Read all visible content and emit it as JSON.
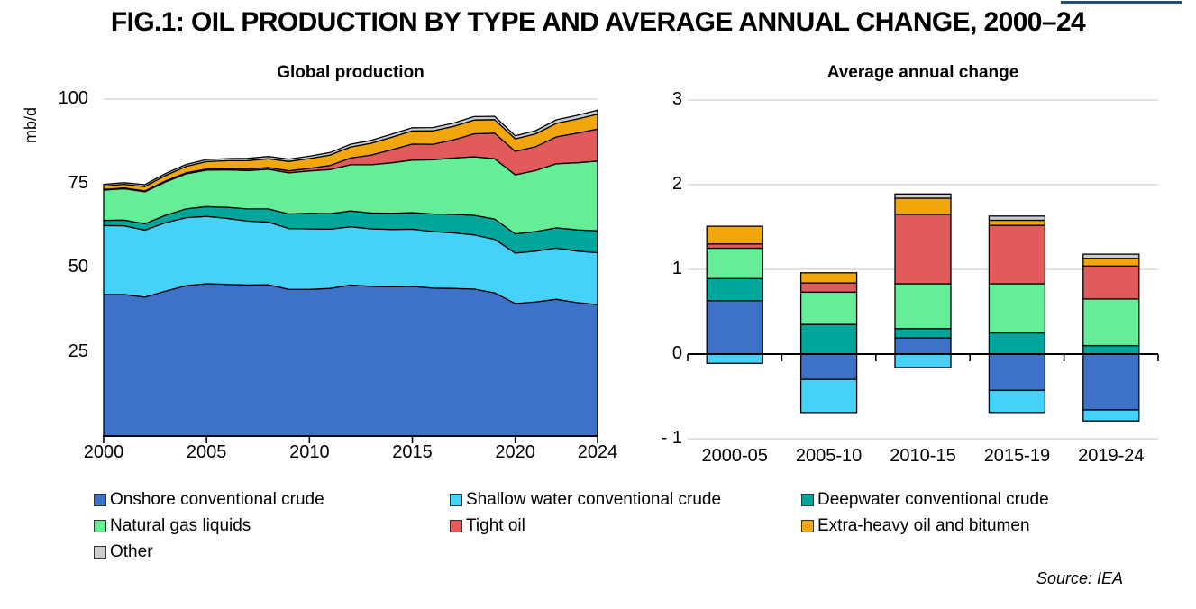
{
  "figure": {
    "title": "FIG.1: OIL PRODUCTION BY TYPE AND AVERAGE ANNUAL CHANGE, 2000–24",
    "source": "Source: IEA",
    "accent_color": "#1F4E79"
  },
  "palette": {
    "grid": "#D9D9D9",
    "axis": "#000000",
    "series_border": "#000000"
  },
  "chart_data": [
    {
      "type": "area",
      "stacked": true,
      "title": "Global production",
      "ylabel": "mb/d",
      "ylim": [
        0,
        100
      ],
      "grid": "single line at 100",
      "gridlines": [
        100
      ],
      "yticks": [
        {
          "v": 100,
          "label": "100"
        },
        {
          "v": 75,
          "label": "75"
        },
        {
          "v": 50,
          "label": "50"
        },
        {
          "v": 25,
          "label": "25"
        }
      ],
      "xticks": [
        {
          "v": 2000,
          "label": "2000"
        },
        {
          "v": 2005,
          "label": "2005"
        },
        {
          "v": 2010,
          "label": "2010"
        },
        {
          "v": 2015,
          "label": "2015"
        },
        {
          "v": 2020,
          "label": "2020"
        },
        {
          "v": 2024,
          "label": "2024"
        }
      ],
      "x": [
        2000,
        2001,
        2002,
        2003,
        2004,
        2005,
        2006,
        2007,
        2008,
        2009,
        2010,
        2011,
        2012,
        2013,
        2014,
        2015,
        2016,
        2017,
        2018,
        2019,
        2020,
        2021,
        2022,
        2023,
        2024
      ],
      "series": [
        {
          "name": "Onshore conventional crude",
          "color": "#3D72C8",
          "values": [
            42.0,
            42.0,
            41.2,
            43.0,
            44.6,
            45.2,
            45.0,
            44.8,
            44.9,
            43.5,
            43.5,
            43.8,
            44.8,
            44.4,
            44.3,
            44.4,
            43.9,
            43.8,
            43.6,
            42.5,
            39.3,
            39.8,
            40.6,
            39.6,
            39.0
          ]
        },
        {
          "name": "Shallow water conventional crude",
          "color": "#45D1F8",
          "values": [
            20.5,
            20.4,
            19.9,
            20.3,
            20.2,
            20.0,
            19.6,
            19.0,
            18.6,
            18.1,
            18.0,
            17.6,
            17.3,
            17.1,
            17.0,
            17.0,
            16.8,
            16.5,
            16.1,
            15.9,
            15.0,
            15.1,
            15.2,
            15.3,
            15.4
          ]
        },
        {
          "name": "Deepwater conventional crude",
          "color": "#00A69C",
          "values": [
            1.5,
            1.7,
            1.9,
            2.2,
            2.6,
            2.9,
            3.3,
            3.6,
            3.9,
            4.3,
            4.6,
            4.6,
            4.7,
            4.7,
            4.8,
            4.9,
            5.2,
            5.5,
            5.8,
            6.0,
            5.7,
            5.8,
            6.0,
            6.3,
            6.5
          ]
        },
        {
          "name": "Natural gas liquids",
          "color": "#66ED97",
          "values": [
            9.0,
            9.3,
            9.5,
            9.9,
            10.4,
            10.8,
            11.1,
            11.4,
            11.8,
            12.2,
            12.6,
            13.1,
            13.7,
            14.3,
            15.0,
            15.6,
            16.1,
            16.7,
            17.4,
            17.9,
            17.5,
            18.1,
            19.0,
            19.9,
            20.7
          ]
        },
        {
          "name": "Tight oil",
          "color": "#E25B5B",
          "values": [
            0.2,
            0.2,
            0.25,
            0.3,
            0.3,
            0.35,
            0.4,
            0.45,
            0.5,
            0.6,
            0.75,
            1.2,
            2.0,
            2.9,
            3.9,
            4.75,
            4.6,
            5.4,
            6.8,
            7.6,
            7.0,
            7.1,
            8.0,
            8.8,
            9.5
          ]
        },
        {
          "name": "Extra-heavy oil and bitumen",
          "color": "#F2A60E",
          "values": [
            1.0,
            1.1,
            1.3,
            1.6,
            1.9,
            2.2,
            2.3,
            2.5,
            2.6,
            2.8,
            2.9,
            3.1,
            3.3,
            3.5,
            3.7,
            3.9,
            4.0,
            4.0,
            4.1,
            4.0,
            3.7,
            3.8,
            4.0,
            4.2,
            4.4
          ]
        },
        {
          "name": "Other",
          "color": "#C9CDD0",
          "values": [
            0.5,
            0.5,
            0.55,
            0.6,
            0.6,
            0.6,
            0.62,
            0.65,
            0.68,
            0.7,
            0.7,
            0.75,
            0.8,
            0.85,
            0.9,
            0.95,
            0.95,
            1.0,
            1.0,
            1.0,
            0.9,
            0.95,
            1.05,
            1.1,
            1.2
          ]
        }
      ]
    },
    {
      "type": "bar",
      "stacked": true,
      "title": "Average annual change",
      "ylim": [
        -1,
        3
      ],
      "gridlines": [
        3,
        2,
        1,
        -1
      ],
      "yticks": [
        {
          "v": 3,
          "label": "3"
        },
        {
          "v": 2,
          "label": "2"
        },
        {
          "v": 1,
          "label": "1"
        },
        {
          "v": 0,
          "label": "0"
        },
        {
          "v": -1,
          "label": "- 1"
        }
      ],
      "categories": [
        "2000-05",
        "2005-10",
        "2010-15",
        "2015-19",
        "2019-24"
      ],
      "series": [
        {
          "name": "Onshore conventional crude",
          "color": "#3D72C8",
          "values": [
            0.63,
            -0.3,
            0.19,
            -0.43,
            -0.66
          ]
        },
        {
          "name": "Shallow water conventional crude",
          "color": "#45D1F8",
          "values": [
            -0.11,
            -0.39,
            -0.16,
            -0.26,
            -0.13
          ]
        },
        {
          "name": "Deepwater conventional crude",
          "color": "#00A69C",
          "values": [
            0.26,
            0.35,
            0.11,
            0.25,
            0.1
          ]
        },
        {
          "name": "Natural gas liquids",
          "color": "#66ED97",
          "values": [
            0.36,
            0.38,
            0.53,
            0.58,
            0.55
          ]
        },
        {
          "name": "Tight oil",
          "color": "#E25B5B",
          "values": [
            0.05,
            0.11,
            0.82,
            0.69,
            0.39
          ]
        },
        {
          "name": "Extra-heavy oil and bitumen",
          "color": "#F2A60E",
          "values": [
            0.21,
            0.12,
            0.19,
            0.06,
            0.09
          ]
        },
        {
          "name": "Other",
          "color": "#C9CDD0",
          "values": [
            0.0,
            0.0,
            0.05,
            0.05,
            0.05
          ]
        }
      ]
    }
  ],
  "legend": {
    "note": "items mirror chart series order",
    "labels": [
      "Onshore conventional crude",
      "Shallow water conventional crude",
      "Deepwater conventional crude",
      "Natural gas liquids",
      "Tight oil",
      "Extra-heavy oil and bitumen",
      "Other"
    ]
  }
}
